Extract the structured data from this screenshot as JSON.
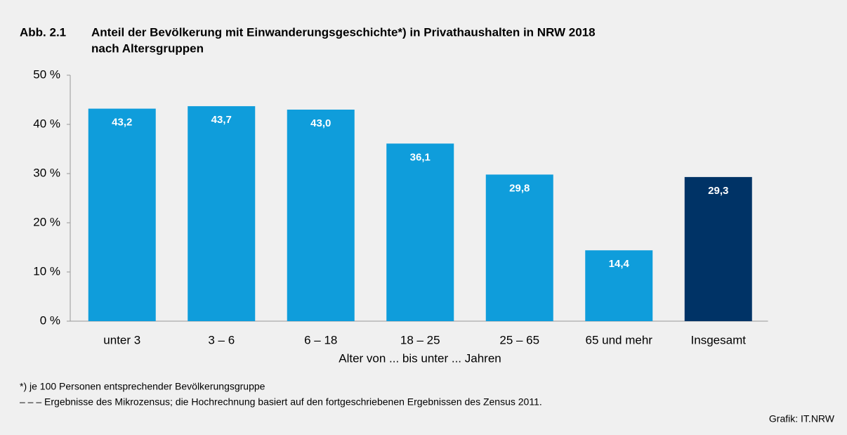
{
  "chart_data": {
    "type": "bar",
    "figure_label": "Abb. 2.1",
    "title": [
      "Anteil der Bevölkerung mit Einwanderungsgeschichte*) in Privathaushalten in NRW 2018",
      "nach Altersgruppen"
    ],
    "categories": [
      "unter 3",
      "3 – 6",
      "6 – 18",
      "18 – 25",
      "25 – 65",
      "65 und mehr",
      "Insgesamt"
    ],
    "values": [
      43.2,
      43.7,
      43.0,
      36.1,
      29.8,
      14.4,
      29.3
    ],
    "value_labels": [
      "43,2",
      "43,7",
      "43,0",
      "36,1",
      "29,8",
      "14,4",
      "29,3"
    ],
    "colors": [
      "#0f9ddb",
      "#0f9ddb",
      "#0f9ddb",
      "#0f9ddb",
      "#0f9ddb",
      "#0f9ddb",
      "#003366"
    ],
    "x_label": "Alter von ... bis unter ... Jahren",
    "ylim": [
      0,
      50
    ],
    "yticks": [
      {
        "value": 0,
        "label": "0 %"
      },
      {
        "value": 10,
        "label": "10 %"
      },
      {
        "value": 20,
        "label": "20 %"
      },
      {
        "value": 30,
        "label": "30 %"
      },
      {
        "value": 40,
        "label": "40 %"
      },
      {
        "value": 50,
        "label": "50 %"
      }
    ],
    "grid": false,
    "footnotes": [
      "*) je 100 Personen entsprechender Bevölkerungsgruppe",
      "– – – Ergebnisse des Mikrozensus; die Hochrechnung basiert auf den fortgeschriebenen Ergebnissen des Zensus 2011."
    ],
    "source": "Grafik: IT.NRW"
  }
}
